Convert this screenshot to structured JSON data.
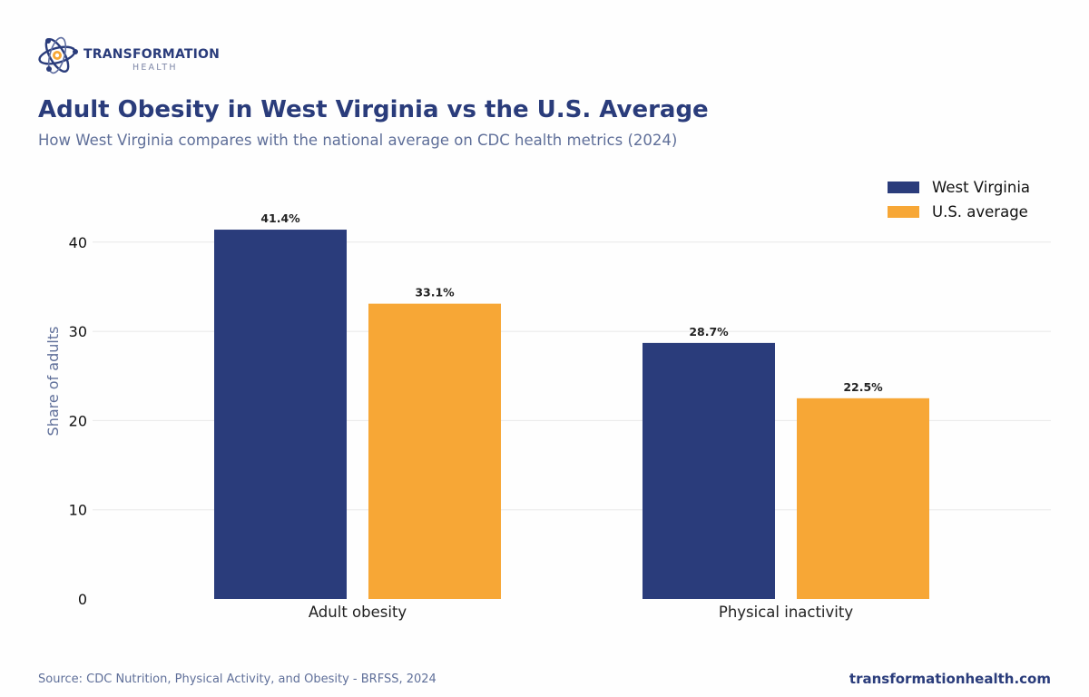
{
  "brand": {
    "name": "TRANSFORMATION",
    "sub": "HEALTH"
  },
  "header": {
    "title": "Adult Obesity in West Virginia vs the U.S. Average",
    "subtitle": "How West Virginia compares with the national average on CDC health metrics (2024)"
  },
  "footer": {
    "source": "Source: CDC Nutrition, Physical Activity, and Obesity - BRFSS, 2024",
    "site": "transformationhealth.com"
  },
  "colors": {
    "west_virginia": "#2a3c7b",
    "us_average": "#f7a736",
    "grid": "#e8e8e8"
  },
  "chart_data": {
    "type": "bar",
    "categories": [
      "Adult obesity",
      "Physical inactivity"
    ],
    "series": [
      {
        "name": "West Virginia",
        "values": [
          41.4,
          28.7
        ],
        "labels": [
          "41.4%",
          "28.7%"
        ]
      },
      {
        "name": "U.S. average",
        "values": [
          33.1,
          22.5
        ],
        "labels": [
          "33.1%",
          "22.5%"
        ]
      }
    ],
    "title": "Adult Obesity in West Virginia vs the U.S. Average",
    "xlabel": "",
    "ylabel": "Share of adults",
    "ylim": [
      0,
      45
    ],
    "yticks": [
      0,
      10,
      20,
      30,
      40
    ],
    "grid": true,
    "legend": "top-right"
  }
}
